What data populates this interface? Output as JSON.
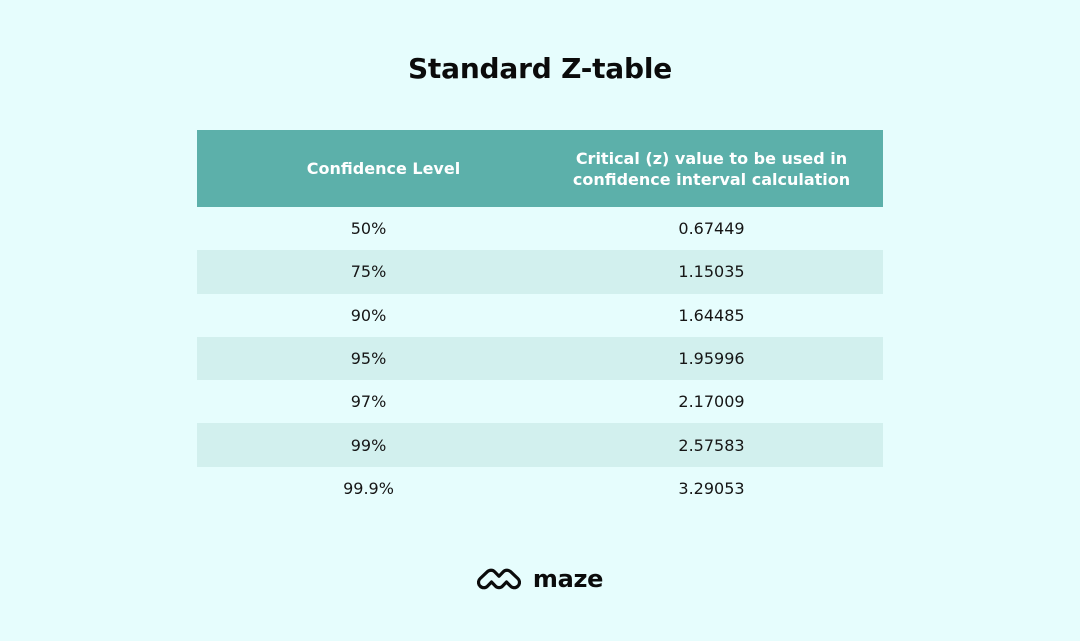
{
  "title": "Standard Z-table",
  "table": {
    "headers": [
      "Confidence Level",
      "Critical (z) value to be used in confidence interval calculation"
    ],
    "rows": [
      [
        "50%",
        "0.67449"
      ],
      [
        "75%",
        "1.15035"
      ],
      [
        "90%",
        "1.64485"
      ],
      [
        "95%",
        "1.95996"
      ],
      [
        "97%",
        "2.17009"
      ],
      [
        "99%",
        "2.57583"
      ],
      [
        "99.9%",
        "3.29053"
      ]
    ]
  },
  "brand": {
    "name": "maze",
    "logo_icon": "maze-logo-icon"
  },
  "colors": {
    "background": "#e6fdfd",
    "header_bg": "#5cb0aa",
    "header_text": "#ffffff",
    "row_alt_bg": "#d2f0ee",
    "text": "#111111"
  }
}
